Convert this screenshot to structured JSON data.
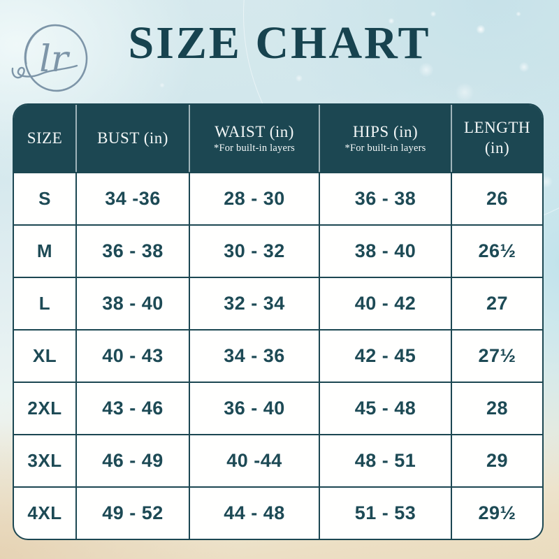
{
  "page": {
    "title": "SIZE CHART"
  },
  "logo": {
    "monogram": "lr",
    "color": "#7d95a8"
  },
  "colors": {
    "teal": "#1c4752",
    "title_text": "#17434f",
    "cell_text": "#1d4a55",
    "card_bg": "#fffffe",
    "bg_top": "#d2e7ec",
    "bg_bottom": "#eadcbf"
  },
  "size_chart": {
    "columns": [
      {
        "label": "SIZE",
        "note": ""
      },
      {
        "label": "BUST (in)",
        "note": ""
      },
      {
        "label": "WAIST (in)",
        "note": "*For built-in layers"
      },
      {
        "label": "HIPS (in)",
        "note": "*For built-in layers"
      },
      {
        "label": "LENGTH",
        "label2": "(in)",
        "note": ""
      }
    ],
    "rows": [
      {
        "size": "S",
        "bust": "34 -36",
        "waist": "28 - 30",
        "hips": "36 - 38",
        "length": "26"
      },
      {
        "size": "M",
        "bust": "36 - 38",
        "waist": "30 - 32",
        "hips": "38 - 40",
        "length": "26½"
      },
      {
        "size": "L",
        "bust": "38 - 40",
        "waist": "32 - 34",
        "hips": "40 - 42",
        "length": "27"
      },
      {
        "size": "XL",
        "bust": "40 - 43",
        "waist": "34 - 36",
        "hips": "42 - 45",
        "length": "27½"
      },
      {
        "size": "2XL",
        "bust": "43 - 46",
        "waist": "36 - 40",
        "hips": "45 - 48",
        "length": "28"
      },
      {
        "size": "3XL",
        "bust": "46 - 49",
        "waist": "40 -44",
        "hips": "48 - 51",
        "length": "29"
      },
      {
        "size": "4XL",
        "bust": "49 - 52",
        "waist": "44 - 48",
        "hips": "51 - 53",
        "length": "29½"
      }
    ]
  }
}
